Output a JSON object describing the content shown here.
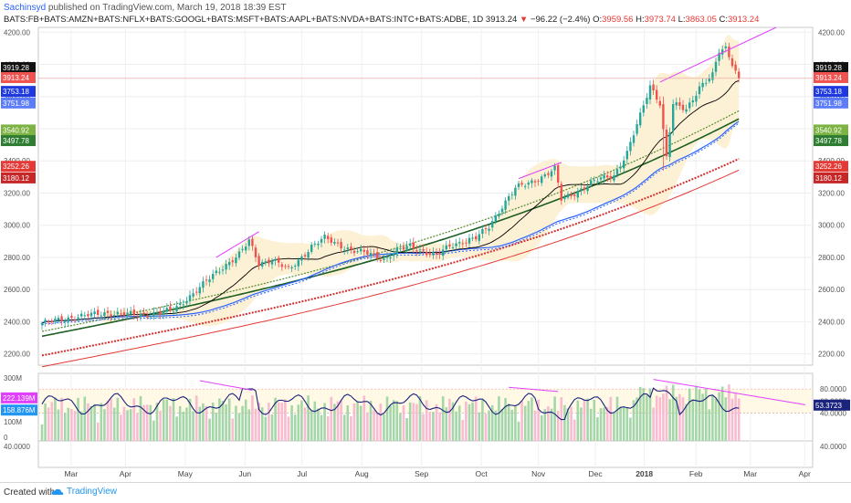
{
  "header": {
    "user": "Sachinsyd",
    "published": " published on TradingView.com, March 19, 2018 18:39 EST",
    "symbol": "BATS:FB+BATS:AMZN+BATS:NFLX+BATS:GOOGL+BATS:MSFT+BATS:AAPL+BATS:NVDA+BATS:INTC+BATS:ADBE, 1D",
    "last": "3913.24",
    "change": "−96.22 (−2.4%)",
    "o_label": "O:",
    "o": "3959.56",
    "h_label": "H:",
    "h": "3973.74",
    "l_label": "L:",
    "l": "3863.05",
    "c_label": "C:",
    "c": "3913.24"
  },
  "footer": {
    "created": "Created with",
    "brand": "TradingView"
  },
  "colors": {
    "candle_up": "#26a69a",
    "candle_down": "#ef5350",
    "ma_fast": "#000000",
    "ma_blue": "#2962ff",
    "ma_green_dotted": "#558b2f",
    "ma_green": "#1b5e20",
    "ma_red_dotted": "#d32f2f",
    "ma_red": "#e53935",
    "trendline": "#e040fb",
    "band": "#fdf0d0",
    "vol_up": "#a5d6a7",
    "vol_down": "#f8bbd0",
    "indicator": "#1a237e"
  },
  "chart_data": {
    "type": "candlestick",
    "y_ticks": [
      "4200.00",
      "4000.00",
      "3800.00",
      "3600.00",
      "3400.00",
      "3200.00",
      "3000.00",
      "2800.00",
      "2600.00",
      "2400.00",
      "2200.00"
    ],
    "ylim": [
      2130,
      4230
    ],
    "x_ticks": [
      "Mar",
      "Apr",
      "May",
      "Jun",
      "Jul",
      "Aug",
      "Sep",
      "Oct",
      "Nov",
      "Dec",
      "2018",
      "Feb",
      "Mar",
      "Apr"
    ],
    "price_anchors": [
      [
        0,
        2390
      ],
      [
        10,
        2430
      ],
      [
        20,
        2455
      ],
      [
        30,
        2440
      ],
      [
        40,
        2470
      ],
      [
        45,
        2560
      ],
      [
        50,
        2650
      ],
      [
        55,
        2740
      ],
      [
        60,
        2820
      ],
      [
        63,
        2900
      ],
      [
        66,
        2760
      ],
      [
        70,
        2790
      ],
      [
        75,
        2720
      ],
      [
        78,
        2780
      ],
      [
        82,
        2870
      ],
      [
        86,
        2920
      ],
      [
        90,
        2880
      ],
      [
        95,
        2840
      ],
      [
        100,
        2820
      ],
      [
        104,
        2790
      ],
      [
        108,
        2840
      ],
      [
        112,
        2870
      ],
      [
        116,
        2840
      ],
      [
        120,
        2810
      ],
      [
        124,
        2870
      ],
      [
        128,
        2900
      ],
      [
        132,
        2920
      ],
      [
        136,
        2990
      ],
      [
        140,
        3120
      ],
      [
        144,
        3230
      ],
      [
        148,
        3260
      ],
      [
        152,
        3300
      ],
      [
        156,
        3350
      ],
      [
        158,
        3160
      ],
      [
        162,
        3200
      ],
      [
        166,
        3250
      ],
      [
        170,
        3290
      ],
      [
        174,
        3310
      ],
      [
        178,
        3450
      ],
      [
        182,
        3680
      ],
      [
        185,
        3870
      ],
      [
        188,
        3760
      ],
      [
        190,
        3420
      ],
      [
        192,
        3750
      ],
      [
        196,
        3720
      ],
      [
        200,
        3860
      ],
      [
        204,
        3930
      ],
      [
        206,
        4080
      ],
      [
        208,
        4100
      ],
      [
        210,
        4010
      ],
      [
        212,
        3913
      ]
    ],
    "last_close": 3913.24,
    "labels": {
      "last_price": "3913.24",
      "ask": "3919.28",
      "ma_blue_1": "3753.18",
      "ma_blue_2": "3751.98",
      "ma_green_dotted": "3540.92",
      "ma_green": "3497.78",
      "ma_red_dotted": "3252.26",
      "ma_red": "3180.12"
    },
    "volume_axis": [
      "300M",
      "100M",
      "0"
    ],
    "volume_labels": {
      "v1": "222.139M",
      "v2": "158.876M"
    },
    "indicator_axis": [
      "80.0000",
      "60.0000",
      "40.0000"
    ],
    "indicator_label": "53.3723",
    "lower_axis": "40.0000"
  }
}
